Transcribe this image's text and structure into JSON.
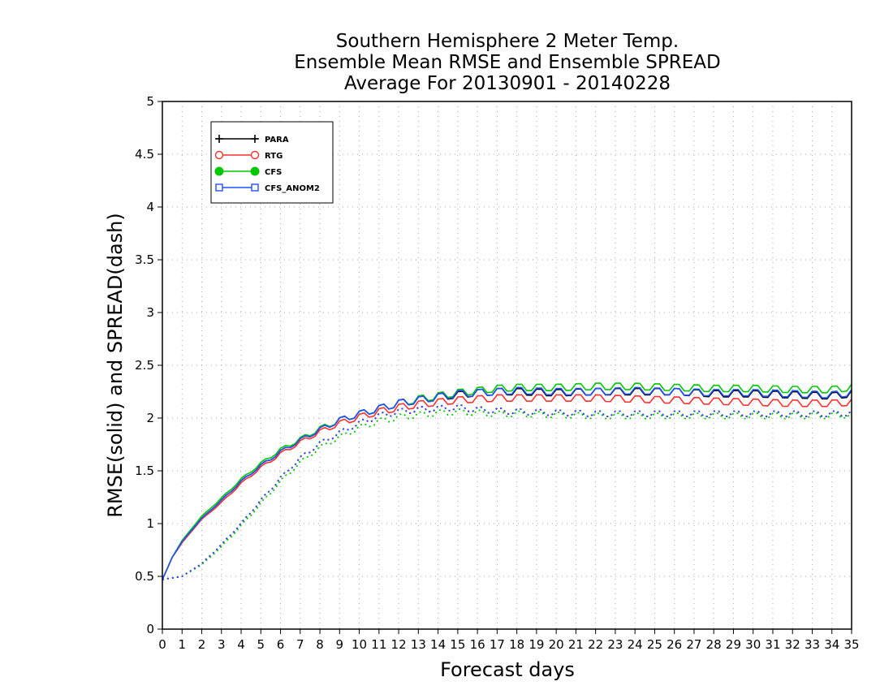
{
  "chart_data": {
    "type": "line",
    "title": [
      "Southern Hemisphere 2 Meter Temp.",
      "Ensemble Mean RMSE and Ensemble SPREAD",
      "Average For 20130901 - 20140228"
    ],
    "xlabel": "Forecast days",
    "ylabel": "RMSE(solid) and SPREAD(dash)",
    "xlim": [
      0,
      35
    ],
    "ylim": [
      0,
      5
    ],
    "xticks": [
      "0",
      "1",
      "2",
      "3",
      "4",
      "5",
      "6",
      "7",
      "8",
      "9",
      "10",
      "11",
      "12",
      "13",
      "14",
      "15",
      "16",
      "17",
      "18",
      "19",
      "20",
      "21",
      "22",
      "23",
      "24",
      "25",
      "26",
      "27",
      "28",
      "29",
      "30",
      "31",
      "32",
      "33",
      "34",
      "35"
    ],
    "yticks": [
      "0",
      "0.5",
      "1",
      "1.5",
      "2",
      "2.5",
      "3",
      "3.5",
      "4",
      "4.5",
      "5"
    ],
    "grid": true,
    "legend_position": "top-left",
    "series": [
      {
        "name": "PARA",
        "color": "#000000",
        "marker": "plus",
        "rmse": [
          [
            0,
            0.47
          ],
          [
            0.5,
            0.68
          ],
          [
            1,
            0.82
          ],
          [
            2,
            1.05
          ],
          [
            3,
            1.22
          ],
          [
            4,
            1.4
          ],
          [
            5,
            1.55
          ],
          [
            6,
            1.68
          ],
          [
            7,
            1.79
          ],
          [
            8,
            1.89
          ],
          [
            9,
            1.98
          ],
          [
            10,
            2.04
          ],
          [
            11,
            2.09
          ],
          [
            12,
            2.14
          ],
          [
            13,
            2.17
          ],
          [
            14,
            2.2
          ],
          [
            15,
            2.22
          ],
          [
            16,
            2.24
          ],
          [
            17,
            2.25
          ],
          [
            18,
            2.25
          ],
          [
            20,
            2.24
          ],
          [
            22,
            2.25
          ],
          [
            24,
            2.25
          ],
          [
            26,
            2.25
          ],
          [
            28,
            2.23
          ],
          [
            30,
            2.23
          ],
          [
            32,
            2.22
          ],
          [
            34,
            2.21
          ],
          [
            35,
            2.23
          ]
        ],
        "spread": [
          [
            0,
            0.47
          ],
          [
            1,
            0.5
          ],
          [
            2,
            0.62
          ],
          [
            3,
            0.8
          ],
          [
            4,
            1.0
          ],
          [
            5,
            1.22
          ],
          [
            6,
            1.43
          ],
          [
            7,
            1.62
          ],
          [
            8,
            1.76
          ],
          [
            9,
            1.86
          ],
          [
            10,
            1.95
          ],
          [
            11,
            2.02
          ],
          [
            12,
            2.06
          ],
          [
            13,
            2.08
          ],
          [
            14,
            2.09
          ],
          [
            15,
            2.1
          ],
          [
            16,
            2.08
          ],
          [
            17,
            2.07
          ],
          [
            18,
            2.06
          ],
          [
            20,
            2.05
          ],
          [
            22,
            2.04
          ],
          [
            24,
            2.04
          ],
          [
            26,
            2.04
          ],
          [
            28,
            2.04
          ],
          [
            30,
            2.04
          ],
          [
            32,
            2.04
          ],
          [
            34,
            2.04
          ],
          [
            35,
            2.05
          ]
        ]
      },
      {
        "name": "RTG",
        "color": "#ff3030",
        "marker": "circle",
        "rmse": [
          [
            0,
            0.47
          ],
          [
            0.5,
            0.68
          ],
          [
            1,
            0.82
          ],
          [
            2,
            1.04
          ],
          [
            3,
            1.2
          ],
          [
            4,
            1.38
          ],
          [
            5,
            1.53
          ],
          [
            6,
            1.66
          ],
          [
            7,
            1.77
          ],
          [
            8,
            1.87
          ],
          [
            9,
            1.95
          ],
          [
            10,
            2.01
          ],
          [
            11,
            2.06
          ],
          [
            12,
            2.1
          ],
          [
            13,
            2.13
          ],
          [
            14,
            2.15
          ],
          [
            15,
            2.17
          ],
          [
            16,
            2.18
          ],
          [
            17,
            2.19
          ],
          [
            18,
            2.19
          ],
          [
            20,
            2.19
          ],
          [
            22,
            2.19
          ],
          [
            24,
            2.18
          ],
          [
            26,
            2.17
          ],
          [
            28,
            2.16
          ],
          [
            30,
            2.15
          ],
          [
            32,
            2.14
          ],
          [
            34,
            2.14
          ],
          [
            35,
            2.15
          ]
        ],
        "spread": [
          [
            0,
            0.47
          ],
          [
            1,
            0.5
          ],
          [
            2,
            0.62
          ],
          [
            3,
            0.8
          ],
          [
            4,
            1.0
          ],
          [
            5,
            1.22
          ],
          [
            6,
            1.43
          ],
          [
            7,
            1.62
          ],
          [
            8,
            1.76
          ],
          [
            9,
            1.86
          ],
          [
            10,
            1.95
          ],
          [
            11,
            2.02
          ],
          [
            12,
            2.06
          ],
          [
            13,
            2.08
          ],
          [
            14,
            2.09
          ],
          [
            15,
            2.1
          ],
          [
            16,
            2.08
          ],
          [
            17,
            2.07
          ],
          [
            18,
            2.06
          ],
          [
            20,
            2.05
          ],
          [
            22,
            2.04
          ],
          [
            24,
            2.04
          ],
          [
            26,
            2.04
          ],
          [
            28,
            2.04
          ],
          [
            30,
            2.04
          ],
          [
            32,
            2.04
          ],
          [
            34,
            2.04
          ],
          [
            35,
            2.05
          ]
        ]
      },
      {
        "name": "CFS",
        "color": "#00c800",
        "marker": "filled-circle",
        "rmse": [
          [
            0,
            0.47
          ],
          [
            0.5,
            0.68
          ],
          [
            1,
            0.84
          ],
          [
            2,
            1.07
          ],
          [
            3,
            1.24
          ],
          [
            4,
            1.42
          ],
          [
            5,
            1.57
          ],
          [
            6,
            1.7
          ],
          [
            7,
            1.8
          ],
          [
            8,
            1.9
          ],
          [
            9,
            1.98
          ],
          [
            10,
            2.04
          ],
          [
            11,
            2.09
          ],
          [
            12,
            2.14
          ],
          [
            13,
            2.18
          ],
          [
            14,
            2.21
          ],
          [
            15,
            2.24
          ],
          [
            16,
            2.26
          ],
          [
            17,
            2.28
          ],
          [
            18,
            2.29
          ],
          [
            20,
            2.29
          ],
          [
            22,
            2.3
          ],
          [
            24,
            2.3
          ],
          [
            26,
            2.29
          ],
          [
            28,
            2.28
          ],
          [
            30,
            2.28
          ],
          [
            32,
            2.27
          ],
          [
            34,
            2.27
          ],
          [
            35,
            2.29
          ]
        ],
        "spread": [
          [
            0,
            0.47
          ],
          [
            1,
            0.5
          ],
          [
            2,
            0.61
          ],
          [
            3,
            0.78
          ],
          [
            4,
            0.98
          ],
          [
            5,
            1.19
          ],
          [
            6,
            1.4
          ],
          [
            7,
            1.58
          ],
          [
            8,
            1.72
          ],
          [
            9,
            1.82
          ],
          [
            10,
            1.91
          ],
          [
            11,
            1.97
          ],
          [
            12,
            2.01
          ],
          [
            13,
            2.03
          ],
          [
            14,
            2.05
          ],
          [
            15,
            2.06
          ],
          [
            16,
            2.05
          ],
          [
            17,
            2.04
          ],
          [
            18,
            2.04
          ],
          [
            20,
            2.03
          ],
          [
            22,
            2.02
          ],
          [
            24,
            2.02
          ],
          [
            26,
            2.02
          ],
          [
            28,
            2.02
          ],
          [
            30,
            2.02
          ],
          [
            32,
            2.02
          ],
          [
            34,
            2.02
          ],
          [
            35,
            2.03
          ]
        ]
      },
      {
        "name": "CFS_ANOM2",
        "color": "#2050ff",
        "marker": "square",
        "rmse": [
          [
            0,
            0.47
          ],
          [
            0.5,
            0.68
          ],
          [
            1,
            0.83
          ],
          [
            2,
            1.05
          ],
          [
            3,
            1.22
          ],
          [
            4,
            1.4
          ],
          [
            5,
            1.55
          ],
          [
            6,
            1.68
          ],
          [
            7,
            1.79
          ],
          [
            8,
            1.89
          ],
          [
            9,
            1.98
          ],
          [
            10,
            2.04
          ],
          [
            11,
            2.09
          ],
          [
            12,
            2.14
          ],
          [
            13,
            2.17
          ],
          [
            14,
            2.2
          ],
          [
            15,
            2.23
          ],
          [
            16,
            2.24
          ],
          [
            17,
            2.25
          ],
          [
            18,
            2.26
          ],
          [
            20,
            2.25
          ],
          [
            22,
            2.25
          ],
          [
            24,
            2.26
          ],
          [
            26,
            2.25
          ],
          [
            28,
            2.24
          ],
          [
            30,
            2.24
          ],
          [
            32,
            2.23
          ],
          [
            34,
            2.22
          ],
          [
            35,
            2.24
          ]
        ],
        "spread": [
          [
            0,
            0.47
          ],
          [
            1,
            0.5
          ],
          [
            2,
            0.62
          ],
          [
            3,
            0.8
          ],
          [
            4,
            1.0
          ],
          [
            5,
            1.22
          ],
          [
            6,
            1.43
          ],
          [
            7,
            1.62
          ],
          [
            8,
            1.76
          ],
          [
            9,
            1.86
          ],
          [
            10,
            1.95
          ],
          [
            11,
            2.02
          ],
          [
            12,
            2.06
          ],
          [
            13,
            2.08
          ],
          [
            14,
            2.09
          ],
          [
            15,
            2.1
          ],
          [
            16,
            2.08
          ],
          [
            17,
            2.07
          ],
          [
            18,
            2.06
          ],
          [
            20,
            2.05
          ],
          [
            22,
            2.04
          ],
          [
            24,
            2.04
          ],
          [
            26,
            2.04
          ],
          [
            28,
            2.04
          ],
          [
            30,
            2.04
          ],
          [
            32,
            2.04
          ],
          [
            34,
            2.04
          ],
          [
            35,
            2.05
          ]
        ]
      }
    ]
  }
}
